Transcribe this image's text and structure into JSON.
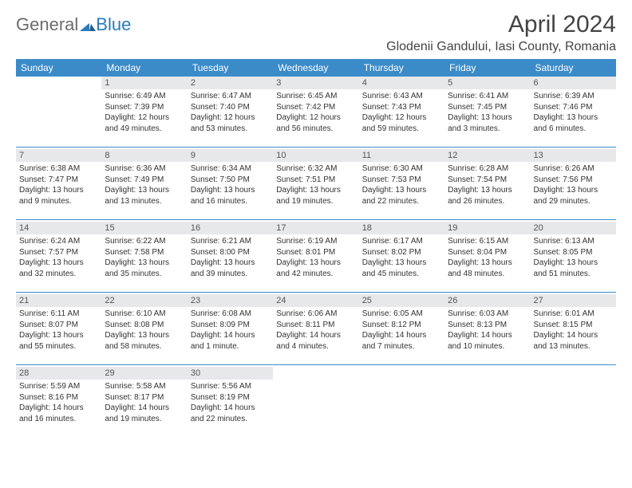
{
  "logo": {
    "general": "General",
    "blue": "Blue"
  },
  "header": {
    "title": "April 2024",
    "location": "Glodenii Gandului, Iasi County, Romania"
  },
  "colors": {
    "header_bg": "#3b8bc8",
    "header_fg": "#ffffff",
    "daynum_bg": "#e7e8e9",
    "rule": "#3b8bc8",
    "logo_gray": "#6b6b6b",
    "logo_blue": "#2a7ab9"
  },
  "weekdays": [
    "Sunday",
    "Monday",
    "Tuesday",
    "Wednesday",
    "Thursday",
    "Friday",
    "Saturday"
  ],
  "weeks": [
    [
      null,
      {
        "n": "1",
        "sr": "6:49 AM",
        "ss": "7:39 PM",
        "dl": "12 hours and 49 minutes."
      },
      {
        "n": "2",
        "sr": "6:47 AM",
        "ss": "7:40 PM",
        "dl": "12 hours and 53 minutes."
      },
      {
        "n": "3",
        "sr": "6:45 AM",
        "ss": "7:42 PM",
        "dl": "12 hours and 56 minutes."
      },
      {
        "n": "4",
        "sr": "6:43 AM",
        "ss": "7:43 PM",
        "dl": "12 hours and 59 minutes."
      },
      {
        "n": "5",
        "sr": "6:41 AM",
        "ss": "7:45 PM",
        "dl": "13 hours and 3 minutes."
      },
      {
        "n": "6",
        "sr": "6:39 AM",
        "ss": "7:46 PM",
        "dl": "13 hours and 6 minutes."
      }
    ],
    [
      {
        "n": "7",
        "sr": "6:38 AM",
        "ss": "7:47 PM",
        "dl": "13 hours and 9 minutes."
      },
      {
        "n": "8",
        "sr": "6:36 AM",
        "ss": "7:49 PM",
        "dl": "13 hours and 13 minutes."
      },
      {
        "n": "9",
        "sr": "6:34 AM",
        "ss": "7:50 PM",
        "dl": "13 hours and 16 minutes."
      },
      {
        "n": "10",
        "sr": "6:32 AM",
        "ss": "7:51 PM",
        "dl": "13 hours and 19 minutes."
      },
      {
        "n": "11",
        "sr": "6:30 AM",
        "ss": "7:53 PM",
        "dl": "13 hours and 22 minutes."
      },
      {
        "n": "12",
        "sr": "6:28 AM",
        "ss": "7:54 PM",
        "dl": "13 hours and 26 minutes."
      },
      {
        "n": "13",
        "sr": "6:26 AM",
        "ss": "7:56 PM",
        "dl": "13 hours and 29 minutes."
      }
    ],
    [
      {
        "n": "14",
        "sr": "6:24 AM",
        "ss": "7:57 PM",
        "dl": "13 hours and 32 minutes."
      },
      {
        "n": "15",
        "sr": "6:22 AM",
        "ss": "7:58 PM",
        "dl": "13 hours and 35 minutes."
      },
      {
        "n": "16",
        "sr": "6:21 AM",
        "ss": "8:00 PM",
        "dl": "13 hours and 39 minutes."
      },
      {
        "n": "17",
        "sr": "6:19 AM",
        "ss": "8:01 PM",
        "dl": "13 hours and 42 minutes."
      },
      {
        "n": "18",
        "sr": "6:17 AM",
        "ss": "8:02 PM",
        "dl": "13 hours and 45 minutes."
      },
      {
        "n": "19",
        "sr": "6:15 AM",
        "ss": "8:04 PM",
        "dl": "13 hours and 48 minutes."
      },
      {
        "n": "20",
        "sr": "6:13 AM",
        "ss": "8:05 PM",
        "dl": "13 hours and 51 minutes."
      }
    ],
    [
      {
        "n": "21",
        "sr": "6:11 AM",
        "ss": "8:07 PM",
        "dl": "13 hours and 55 minutes."
      },
      {
        "n": "22",
        "sr": "6:10 AM",
        "ss": "8:08 PM",
        "dl": "13 hours and 58 minutes."
      },
      {
        "n": "23",
        "sr": "6:08 AM",
        "ss": "8:09 PM",
        "dl": "14 hours and 1 minute."
      },
      {
        "n": "24",
        "sr": "6:06 AM",
        "ss": "8:11 PM",
        "dl": "14 hours and 4 minutes."
      },
      {
        "n": "25",
        "sr": "6:05 AM",
        "ss": "8:12 PM",
        "dl": "14 hours and 7 minutes."
      },
      {
        "n": "26",
        "sr": "6:03 AM",
        "ss": "8:13 PM",
        "dl": "14 hours and 10 minutes."
      },
      {
        "n": "27",
        "sr": "6:01 AM",
        "ss": "8:15 PM",
        "dl": "14 hours and 13 minutes."
      }
    ],
    [
      {
        "n": "28",
        "sr": "5:59 AM",
        "ss": "8:16 PM",
        "dl": "14 hours and 16 minutes."
      },
      {
        "n": "29",
        "sr": "5:58 AM",
        "ss": "8:17 PM",
        "dl": "14 hours and 19 minutes."
      },
      {
        "n": "30",
        "sr": "5:56 AM",
        "ss": "8:19 PM",
        "dl": "14 hours and 22 minutes."
      },
      null,
      null,
      null,
      null
    ]
  ],
  "labels": {
    "sunrise": "Sunrise:",
    "sunset": "Sunset:",
    "daylight": "Daylight:"
  }
}
